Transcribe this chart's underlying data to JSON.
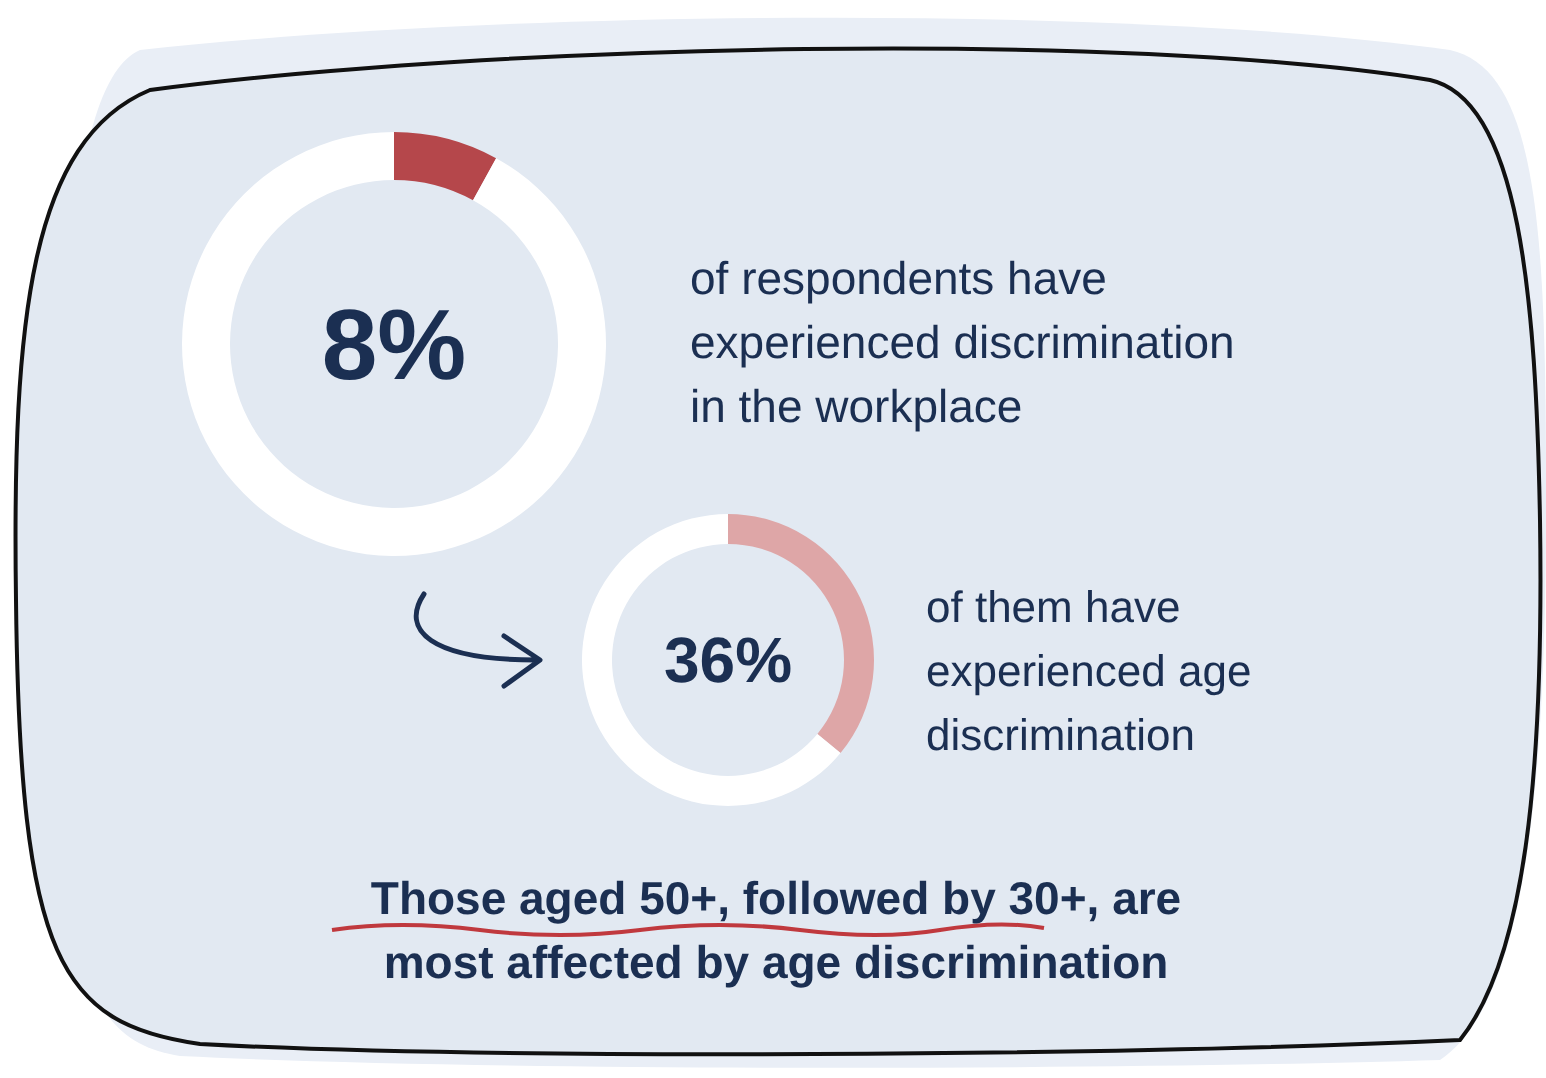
{
  "chart_data": [
    {
      "type": "donut",
      "categories": [
        null,
        null
      ],
      "values": [
        8,
        92
      ],
      "colors": [
        "#b5474b",
        "#ffffff"
      ],
      "title": "8%",
      "annotations": [
        "of respondents have experienced discrimination in the workplace"
      ]
    },
    {
      "type": "donut",
      "categories": [
        null,
        null
      ],
      "values": [
        36,
        64
      ],
      "colors": [
        "#dea6a7",
        "#ffffff"
      ],
      "title": "36%",
      "annotations": [
        "of them have experienced age discrimination",
        "Those aged 50+, followed by 30+, are most affected by age discrimination"
      ]
    }
  ]
}
